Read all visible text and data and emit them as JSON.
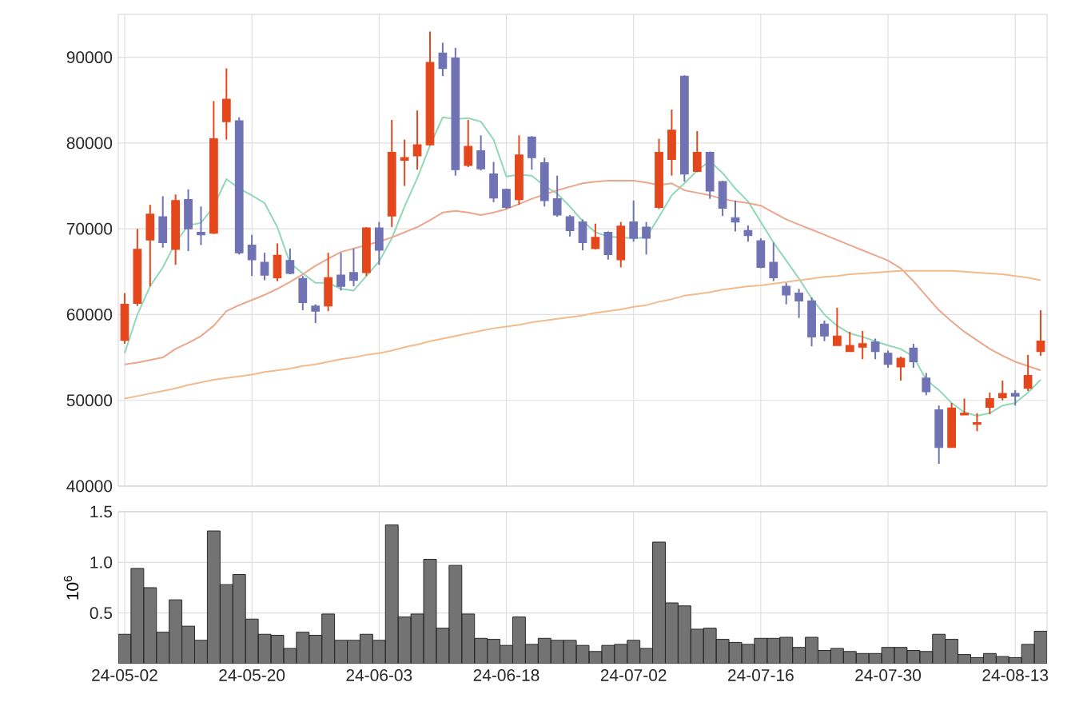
{
  "chart_data": [
    {
      "type": "candlestick",
      "categories": [
        null,
        null,
        null,
        null,
        null,
        null,
        null,
        null,
        null,
        null,
        null,
        null,
        null,
        null,
        null,
        null,
        null,
        null,
        null,
        null,
        null,
        null,
        null,
        null,
        null,
        null,
        null,
        null,
        null,
        null,
        null,
        null,
        null,
        null,
        null,
        null,
        null,
        null,
        null,
        null,
        null,
        null,
        null,
        null,
        null,
        null,
        null,
        null,
        null,
        null,
        null,
        null,
        null,
        null,
        null,
        null,
        null,
        null,
        null,
        null,
        null,
        null,
        null,
        null,
        null,
        null,
        null,
        null,
        null,
        null,
        null,
        null,
        null
      ],
      "ohlc": [
        [
          57000,
          62500,
          56600,
          61200
        ],
        [
          61300,
          70000,
          61000,
          67600
        ],
        [
          68700,
          72800,
          63300,
          71700
        ],
        [
          71400,
          73800,
          67800,
          68400
        ],
        [
          67600,
          74000,
          65800,
          73300
        ],
        [
          73400,
          74600,
          67400,
          70000
        ],
        [
          69600,
          72600,
          68100,
          69300
        ],
        [
          69500,
          84900,
          69400,
          80500
        ],
        [
          82500,
          88700,
          80400,
          85100
        ],
        [
          82600,
          83000,
          67000,
          67200
        ],
        [
          68100,
          69300,
          64500,
          66400
        ],
        [
          66100,
          67200,
          64000,
          64600
        ],
        [
          64300,
          68300,
          63900,
          66900
        ],
        [
          66300,
          67700,
          64700,
          64800
        ],
        [
          64200,
          64500,
          60500,
          61400
        ],
        [
          61000,
          61200,
          59000,
          60400
        ],
        [
          61000,
          67200,
          60400,
          64300
        ],
        [
          64600,
          67200,
          62800,
          63300
        ],
        [
          64900,
          67700,
          63300,
          64000
        ],
        [
          64900,
          70200,
          64500,
          70100
        ],
        [
          70100,
          70800,
          65800,
          67500
        ],
        [
          71500,
          82700,
          70200,
          78900
        ],
        [
          78000,
          80400,
          75000,
          78300
        ],
        [
          78500,
          83800,
          76900,
          79800
        ],
        [
          79800,
          93000,
          79700,
          89400
        ],
        [
          90500,
          91700,
          87800,
          88700
        ],
        [
          89900,
          91100,
          76200,
          76900
        ],
        [
          77400,
          82700,
          77200,
          79600
        ],
        [
          79100,
          80900,
          76800,
          77000
        ],
        [
          76400,
          77800,
          73100,
          73600
        ],
        [
          74600,
          74700,
          72300,
          72500
        ],
        [
          73400,
          80900,
          72800,
          78600
        ],
        [
          80700,
          80800,
          76900,
          78300
        ],
        [
          77700,
          78300,
          72600,
          73300
        ],
        [
          73500,
          76200,
          71400,
          71600
        ],
        [
          71400,
          71600,
          69100,
          69800
        ],
        [
          70800,
          71100,
          67500,
          68400
        ],
        [
          67700,
          70600,
          67600,
          69000
        ],
        [
          69600,
          69700,
          66400,
          67000
        ],
        [
          66400,
          70800,
          65500,
          70300
        ],
        [
          70800,
          73300,
          68500,
          68900
        ],
        [
          70200,
          70800,
          67000,
          68900
        ],
        [
          72500,
          80500,
          72300,
          78900
        ],
        [
          78100,
          83900,
          76200,
          81500
        ],
        [
          87800,
          87900,
          75500,
          76400
        ],
        [
          76700,
          81400,
          76600,
          78900
        ],
        [
          78900,
          79000,
          73500,
          74400
        ],
        [
          75500,
          75600,
          71500,
          72400
        ],
        [
          71300,
          73300,
          69700,
          70800
        ],
        [
          69800,
          70400,
          68500,
          69200
        ],
        [
          68600,
          68900,
          65400,
          65500
        ],
        [
          66100,
          68400,
          63900,
          64300
        ],
        [
          63300,
          63700,
          61200,
          62300
        ],
        [
          62500,
          63000,
          59600,
          61600
        ],
        [
          61600,
          62000,
          56300,
          57400
        ],
        [
          58900,
          59300,
          56900,
          57500
        ],
        [
          56400,
          60800,
          56400,
          57500
        ],
        [
          55700,
          58000,
          55700,
          56400
        ],
        [
          56200,
          58100,
          54800,
          56600
        ],
        [
          56800,
          57200,
          54800,
          55700
        ],
        [
          55500,
          55800,
          53800,
          54200
        ],
        [
          53900,
          55100,
          52300,
          54900
        ],
        [
          56100,
          56600,
          53800,
          54500
        ],
        [
          52600,
          53200,
          50600,
          51000
        ],
        [
          48900,
          49400,
          42600,
          44500
        ],
        [
          44500,
          49700,
          44500,
          49100
        ],
        [
          48300,
          50200,
          48300,
          48500
        ],
        [
          47200,
          48500,
          46400,
          47400
        ],
        [
          49200,
          50900,
          48400,
          50200
        ],
        [
          50300,
          52300,
          50000,
          50800
        ],
        [
          50800,
          51200,
          49400,
          50500
        ],
        [
          51400,
          55300,
          51100,
          52900
        ],
        [
          55700,
          60500,
          55200,
          56900
        ]
      ],
      "colors": [
        "#e4471c",
        "#e4471c",
        "#e4471c",
        "#6f73b4",
        "#e4471c",
        "#6f73b4",
        "#6f73b4",
        "#e4471c",
        "#e4471c",
        "#6f73b4",
        "#6f73b4",
        "#6f73b4",
        "#e4471c",
        "#6f73b4",
        "#6f73b4",
        "#6f73b4",
        "#e4471c",
        "#6f73b4",
        "#6f73b4",
        "#e4471c",
        "#6f73b4",
        "#e4471c",
        "#e4471c",
        "#e4471c",
        "#e4471c",
        "#6f73b4",
        "#6f73b4",
        "#e4471c",
        "#6f73b4",
        "#6f73b4",
        "#6f73b4",
        "#e4471c",
        "#6f73b4",
        "#6f73b4",
        "#6f73b4",
        "#6f73b4",
        "#6f73b4",
        "#e4471c",
        "#6f73b4",
        "#e4471c",
        "#6f73b4",
        "#6f73b4",
        "#e4471c",
        "#e4471c",
        "#6f73b4",
        "#e4471c",
        "#6f73b4",
        "#6f73b4",
        "#6f73b4",
        "#6f73b4",
        "#6f73b4",
        "#6f73b4",
        "#6f73b4",
        "#6f73b4",
        "#6f73b4",
        "#6f73b4",
        "#e4471c",
        "#e4471c",
        "#e4471c",
        "#6f73b4",
        "#6f73b4",
        "#e4471c",
        "#6f73b4",
        "#6f73b4",
        "#6f73b4",
        "#e4471c",
        "#e4471c",
        "#e4471c",
        "#e4471c",
        "#e4471c",
        "#6f73b4",
        "#e4471c",
        "#e4471c"
      ],
      "series": [
        {
          "type": "line",
          "color": "#8fd9b6",
          "values": [
            55500,
            60000,
            63300,
            65500,
            68400,
            70400,
            70700,
            72600,
            75800,
            74700,
            73900,
            73000,
            70200,
            66000,
            64800,
            63700,
            63700,
            63000,
            62800,
            64500,
            66200,
            68900,
            72600,
            75900,
            79700,
            83000,
            82800,
            82900,
            82500,
            80400,
            76100,
            76300,
            76200,
            75000,
            74100,
            72600,
            70900,
            69600,
            69100,
            69000,
            68900,
            69000,
            71400,
            73900,
            75300,
            76800,
            77900,
            76500,
            74700,
            73200,
            70800,
            68400,
            66300,
            64200,
            61900,
            60000,
            58700,
            57800,
            57400,
            56900,
            56400,
            56000,
            55100,
            52400,
            51200,
            49700,
            48600,
            48200,
            48500,
            49400,
            49700,
            50900,
            52400
          ]
        },
        {
          "type": "line",
          "color": "#eca68b",
          "values": [
            54200,
            54400,
            54700,
            55000,
            56000,
            56700,
            57500,
            58700,
            60400,
            61100,
            61700,
            62300,
            63000,
            63800,
            64700,
            65700,
            66500,
            67300,
            67700,
            68100,
            68500,
            69000,
            69600,
            70200,
            71000,
            71900,
            72100,
            71900,
            71600,
            71900,
            72300,
            72900,
            73500,
            74000,
            74500,
            74900,
            75300,
            75500,
            75600,
            75600,
            75600,
            75400,
            75100,
            75300,
            74500,
            74200,
            73900,
            73500,
            73200,
            73000,
            72700,
            71900,
            71100,
            70500,
            69900,
            69300,
            68700,
            68100,
            67500,
            66900,
            66300,
            65400,
            63900,
            62200,
            60500,
            59200,
            58000,
            57000,
            56000,
            55200,
            54500,
            54000,
            53500
          ]
        },
        {
          "type": "line",
          "color": "#f2bb8e",
          "values": [
            50200,
            50500,
            50800,
            51100,
            51400,
            51800,
            52100,
            52400,
            52600,
            52800,
            53000,
            53300,
            53500,
            53700,
            54000,
            54200,
            54500,
            54800,
            55000,
            55300,
            55500,
            55800,
            56200,
            56500,
            56900,
            57200,
            57500,
            57800,
            58100,
            58400,
            58600,
            58800,
            59100,
            59300,
            59500,
            59700,
            59900,
            60200,
            60400,
            60600,
            60900,
            61100,
            61500,
            61800,
            62200,
            62400,
            62600,
            62900,
            63100,
            63300,
            63400,
            63600,
            63800,
            64000,
            64200,
            64400,
            64500,
            64700,
            64800,
            64900,
            65000,
            65100,
            65100,
            65100,
            65100,
            65100,
            65000,
            64900,
            64800,
            64700,
            64500,
            64300,
            64000
          ]
        }
      ],
      "ylim": [
        40000,
        95000
      ],
      "yticks": [
        40000,
        50000,
        60000,
        70000,
        80000,
        90000
      ],
      "grid": true,
      "tick_labels": "y"
    },
    {
      "type": "bar",
      "categories": [
        "24-05-02",
        null,
        null,
        null,
        null,
        null,
        null,
        null,
        null,
        null,
        "24-05-20",
        null,
        null,
        null,
        null,
        null,
        null,
        null,
        null,
        null,
        "24-06-03",
        null,
        null,
        null,
        null,
        null,
        null,
        null,
        null,
        null,
        "24-06-18",
        null,
        null,
        null,
        null,
        null,
        null,
        null,
        null,
        null,
        "24-07-02",
        null,
        null,
        null,
        null,
        null,
        null,
        null,
        null,
        null,
        "24-07-16",
        null,
        null,
        null,
        null,
        null,
        null,
        null,
        null,
        null,
        "24-07-30",
        null,
        null,
        null,
        null,
        null,
        null,
        null,
        null,
        null,
        "24-08-13",
        null,
        null
      ],
      "values": [
        0.29,
        0.94,
        0.75,
        0.31,
        0.63,
        0.37,
        0.23,
        1.31,
        0.78,
        0.88,
        0.44,
        0.29,
        0.28,
        0.15,
        0.31,
        0.28,
        0.49,
        0.23,
        0.23,
        0.29,
        0.23,
        1.37,
        0.46,
        0.49,
        1.03,
        0.35,
        0.97,
        0.49,
        0.25,
        0.24,
        0.18,
        0.46,
        0.19,
        0.25,
        0.23,
        0.23,
        0.18,
        0.12,
        0.18,
        0.19,
        0.23,
        0.15,
        1.2,
        0.6,
        0.57,
        0.34,
        0.35,
        0.24,
        0.21,
        0.19,
        0.25,
        0.25,
        0.26,
        0.16,
        0.26,
        0.13,
        0.15,
        0.12,
        0.1,
        0.1,
        0.16,
        0.16,
        0.13,
        0.12,
        0.29,
        0.24,
        0.09,
        0.06,
        0.1,
        0.07,
        0.06,
        0.19,
        0.32
      ],
      "color": "#737373",
      "ylabel": "10$^{6}$",
      "ylim": [
        0,
        1.5
      ],
      "yticks": [
        0.5,
        {
          "value": 1,
          "label": "1.0"
        },
        1.5
      ],
      "grid": true
    }
  ]
}
